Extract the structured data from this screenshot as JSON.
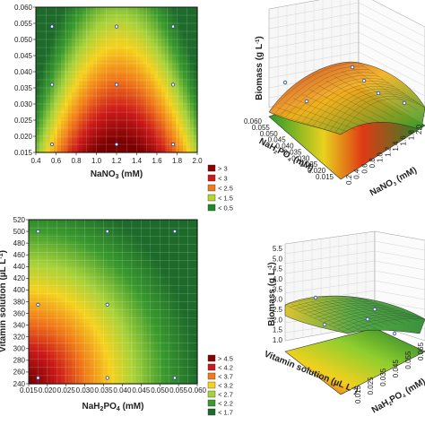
{
  "chart_data": [
    {
      "type": "heatmap",
      "panel": "top-left contour",
      "xlabel": "NaNO",
      "xlabel_sub": "3",
      "xlabel_unit": " (mM)",
      "xlim": [
        0.4,
        2.0
      ],
      "ylim": [
        0.015,
        0.06
      ],
      "x_ticks": [
        "0.4",
        "0.6",
        "0.8",
        "1.0",
        "1.2",
        "1.4",
        "1.6",
        "1.8",
        "2.0"
      ],
      "y_ticks": [
        "0.015",
        "0.020",
        "0.025",
        "0.030",
        "0.035",
        "0.040",
        "0.045",
        "0.050",
        "0.055",
        "0.060"
      ],
      "design_points": [
        {
          "x": 0.56,
          "y": 0.0175
        },
        {
          "x": 1.2,
          "y": 0.0175
        },
        {
          "x": 1.76,
          "y": 0.0175
        },
        {
          "x": 0.56,
          "y": 0.036
        },
        {
          "x": 1.2,
          "y": 0.036
        },
        {
          "x": 1.76,
          "y": 0.036
        },
        {
          "x": 0.56,
          "y": 0.054
        },
        {
          "x": 1.2,
          "y": 0.054
        },
        {
          "x": 1.76,
          "y": 0.054
        }
      ],
      "legend": [
        "> 3",
        "< 3",
        "< 2.5",
        "< 1.5",
        "< 0.5"
      ],
      "legend_colors": [
        "#8b0000",
        "#cc1a1a",
        "#f07a1a",
        "#b7d62a",
        "#1f8a2a"
      ]
    },
    {
      "type": "heatmap",
      "panel": "bottom-left contour",
      "xlabel": "NaH",
      "xlabel_sub": "2",
      "xlabel_mid": "PO",
      "xlabel_sub2": "4",
      "xlabel_unit": " (mM)",
      "ylabel": "Vitamin solution (µL L",
      "ylabel_sup": "-1",
      "ylabel_end": ")",
      "xlim": [
        0.015,
        0.06
      ],
      "ylim": [
        240,
        520
      ],
      "x_ticks": [
        "0.015",
        "0.020",
        "0.025",
        "0.030",
        "0.035",
        "0.040",
        "0.045",
        "0.050",
        "0.055",
        "0.060"
      ],
      "y_ticks": [
        "240",
        "260",
        "280",
        "300",
        "320",
        "340",
        "360",
        "380",
        "400",
        "420",
        "440",
        "460",
        "480",
        "500",
        "520"
      ],
      "design_points": [
        {
          "x": 0.0175,
          "y": 500
        },
        {
          "x": 0.036,
          "y": 500
        },
        {
          "x": 0.054,
          "y": 500
        },
        {
          "x": 0.0175,
          "y": 375
        },
        {
          "x": 0.036,
          "y": 375
        },
        {
          "x": 0.0175,
          "y": 250
        },
        {
          "x": 0.036,
          "y": 250
        },
        {
          "x": 0.054,
          "y": 250
        }
      ],
      "legend": [
        "> 4.5",
        "< 4.2",
        "< 3.7",
        "< 3.2",
        "< 2.7",
        "< 2.2",
        "< 1.7"
      ],
      "legend_colors": [
        "#8b0000",
        "#cc1a1a",
        "#f07a1a",
        "#f5d21e",
        "#a8d23a",
        "#3a9a2e",
        "#1d6a2a"
      ]
    },
    {
      "type": "surface",
      "panel": "top-right 3D",
      "zlabel": "Biomass (g L",
      "zlabel_sup": "-1",
      "zlabel_end": ")",
      "ylabel_side": "NaH",
      "ylabel_side_sub": "2",
      "ylabel_side_end": "PO",
      "ylabel_side_sub2": "4",
      "ylabel_side_unit": " (mM)",
      "xlabel_side": "NaNO",
      "xlabel_side_sub": "3",
      "xlabel_side_unit": " (mM)",
      "y_ticks": [
        "0.060",
        "0.055",
        "0.050",
        "0.045",
        "0.040",
        "0.035",
        "0.030",
        "0.025",
        "0.020",
        "0.015"
      ],
      "x_ticks": [
        "0.2",
        "0.4",
        "0.6",
        "0.8",
        "1.0",
        "1.2",
        "1.4",
        "1.6",
        "1.8",
        "2.0"
      ]
    },
    {
      "type": "surface",
      "panel": "bottom-right 3D",
      "zlabel": "Biomass (g L",
      "zlabel_sup": "-1",
      "zlabel_end": ")",
      "z_ticks": [
        "1.0",
        "1.5",
        "2.0",
        "2.5",
        "3.0",
        "3.5",
        "4.0",
        "4.5",
        "5.0",
        "5.5"
      ],
      "ylabel_side": "Vitamin solution (µL L",
      "ylabel_side_sup": "-1",
      "ylabel_side_end": ")",
      "xlabel_side": "NaH",
      "xlabel_side_sub": "2",
      "xlabel_side_mid": "PO",
      "xlabel_side_sub2": "4",
      "xlabel_side_unit": " (mM)",
      "x_ticks": [
        "0.015",
        "0.025",
        "0.035",
        "0.045",
        "0.055",
        "0.065"
      ]
    }
  ]
}
